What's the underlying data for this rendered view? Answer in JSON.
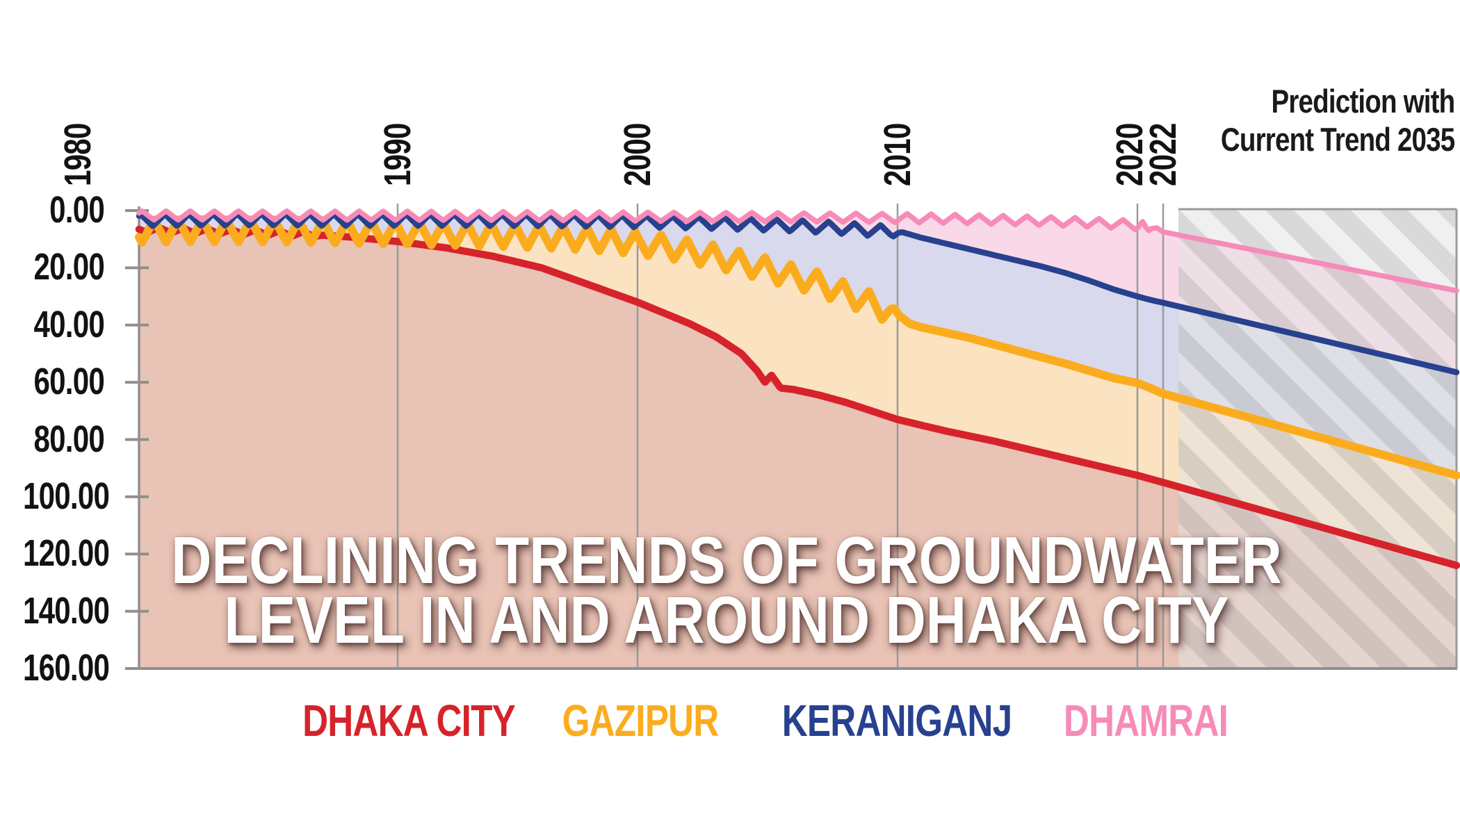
{
  "title": {
    "line1": "DECLINING TRENDS OF GROUNDWATER",
    "line2": "LEVEL IN AND AROUND DHAKA CITY",
    "color": "#ffffff"
  },
  "prediction_note": {
    "line1": "Prediction with",
    "line2": "Current Trend 2035"
  },
  "chart_data": {
    "type": "area",
    "title": "DECLINING TRENDS OF GROUNDWATER LEVEL IN AND AROUND DHAKA CITY",
    "x_axis": {
      "ticks": [
        1980,
        1990,
        2000,
        2010,
        2020,
        2022
      ],
      "gridlines": [
        1990,
        2000,
        2010,
        2020,
        2022
      ],
      "range": [
        1980,
        2035
      ]
    },
    "y_axis": {
      "tick_labels": [
        "0.00",
        "20.00",
        "40.00",
        "60.00",
        "80.00",
        "100.00",
        "120.00",
        "140.00",
        "160.00"
      ],
      "tick_values": [
        0,
        20,
        40,
        60,
        80,
        100,
        120,
        140,
        160
      ],
      "range": [
        0,
        160
      ],
      "inverted": true,
      "grid": false
    },
    "legend_position": "bottom",
    "prediction_region": {
      "from_year": 2022,
      "to_year": 2035,
      "label": "Prediction with Current Trend 2035",
      "hatch_colors": [
        "#c2c2c2",
        "#e3e3e3"
      ]
    },
    "series": [
      {
        "name": "DHAKA CITY",
        "line_color": "#d6232b",
        "fill_color": "#e9c3b5",
        "oscillation": {
          "amplitude": 0.9,
          "until": 1987,
          "period_years": 1,
          "phase": 0.4
        },
        "points": [
          [
            1979.3,
            6.8
          ],
          [
            1980,
            6.8
          ],
          [
            1982,
            7.2
          ],
          [
            1984,
            7.6
          ],
          [
            1986,
            8.2
          ],
          [
            1988,
            9.2
          ],
          [
            1990,
            10.8
          ],
          [
            1992,
            13
          ],
          [
            1994,
            16
          ],
          [
            1996,
            20
          ],
          [
            1998,
            26
          ],
          [
            2000,
            32
          ],
          [
            2002,
            39.5
          ],
          [
            2003,
            44
          ],
          [
            2004,
            50
          ],
          [
            2004.6,
            56
          ],
          [
            2004.9,
            60
          ],
          [
            2005.15,
            57.5
          ],
          [
            2005.5,
            62
          ],
          [
            2006,
            62.5
          ],
          [
            2007,
            64.5
          ],
          [
            2008,
            67
          ],
          [
            2010,
            73
          ],
          [
            2012,
            77
          ],
          [
            2014,
            80.5
          ],
          [
            2016,
            84.5
          ],
          [
            2018,
            88.5
          ],
          [
            2020,
            92.5
          ],
          [
            2022,
            95
          ]
        ],
        "prediction": [
          [
            2022,
            95
          ],
          [
            2035,
            124
          ]
        ]
      },
      {
        "name": "GAZIPUR",
        "line_color": "#fbac1e",
        "fill_color": "#fbe3c1",
        "oscillation": {
          "amplitude": 4.0,
          "until": 2010.2,
          "period_years": 1,
          "phase": 0.6
        },
        "points": [
          [
            1979.3,
            7.2
          ],
          [
            1982,
            7.0
          ],
          [
            1986,
            7.2
          ],
          [
            1990,
            7.8
          ],
          [
            1994,
            8.6
          ],
          [
            1997,
            9.5
          ],
          [
            1999,
            10.5
          ],
          [
            2001,
            12.5
          ],
          [
            2003,
            16
          ],
          [
            2005,
            20.5
          ],
          [
            2006,
            23
          ],
          [
            2007,
            25.5
          ],
          [
            2008,
            29
          ],
          [
            2009,
            32.5
          ],
          [
            2010.2,
            37.5
          ],
          [
            2010.5,
            39.5
          ],
          [
            2011,
            40.8
          ],
          [
            2013,
            44.5
          ],
          [
            2015,
            49
          ],
          [
            2017,
            53.5
          ],
          [
            2019,
            58.5
          ],
          [
            2021,
            62
          ],
          [
            2022,
            64
          ]
        ],
        "prediction": [
          [
            2022,
            64
          ],
          [
            2035,
            92.5
          ]
        ]
      },
      {
        "name": "KERANIGANJ",
        "line_color": "#27418f",
        "fill_color": "#d8d9ec",
        "oscillation": {
          "amplitude": 2.1,
          "until": 2010.3,
          "period_years": 1,
          "phase": 0.15
        },
        "points": [
          [
            1979.3,
            3.4
          ],
          [
            1984,
            3.1
          ],
          [
            1988,
            3.3
          ],
          [
            1992,
            3.3
          ],
          [
            1996,
            3.4
          ],
          [
            2000,
            3.8
          ],
          [
            2003,
            4.4
          ],
          [
            2006,
            5.3
          ],
          [
            2008,
            6.2
          ],
          [
            2010.3,
            7.8
          ],
          [
            2011,
            9.5
          ],
          [
            2012,
            11.5
          ],
          [
            2013,
            13.5
          ],
          [
            2014,
            15.5
          ],
          [
            2015,
            17.5
          ],
          [
            2016,
            19.5
          ],
          [
            2017,
            21.8
          ],
          [
            2018,
            24.5
          ],
          [
            2019,
            27.5
          ],
          [
            2020,
            30
          ],
          [
            2021,
            31.2
          ],
          [
            2022,
            32.2
          ]
        ],
        "prediction": [
          [
            2022,
            32.2
          ],
          [
            2035,
            56.5
          ]
        ]
      },
      {
        "name": "DHAMRAI",
        "line_color": "#f78bb8",
        "fill_color": "#f9d9e7",
        "oscillation": {
          "amplitude": 1.6,
          "until": 2021.3,
          "period_years": 1,
          "phase": 0.1
        },
        "points": [
          [
            1979.3,
            1.7
          ],
          [
            1985,
            1.7
          ],
          [
            1990,
            1.8
          ],
          [
            1995,
            1.9
          ],
          [
            2000,
            2.1
          ],
          [
            2005,
            2.3
          ],
          [
            2010,
            2.6
          ],
          [
            2013,
            3.0
          ],
          [
            2016,
            3.6
          ],
          [
            2018,
            4.2
          ],
          [
            2019.5,
            4.8
          ],
          [
            2020.5,
            5.5
          ],
          [
            2021.2,
            6.3
          ],
          [
            2021.5,
            6.0
          ],
          [
            2022,
            7.5
          ]
        ],
        "prediction": [
          [
            2022,
            7.5
          ],
          [
            2035,
            28
          ]
        ]
      }
    ]
  }
}
